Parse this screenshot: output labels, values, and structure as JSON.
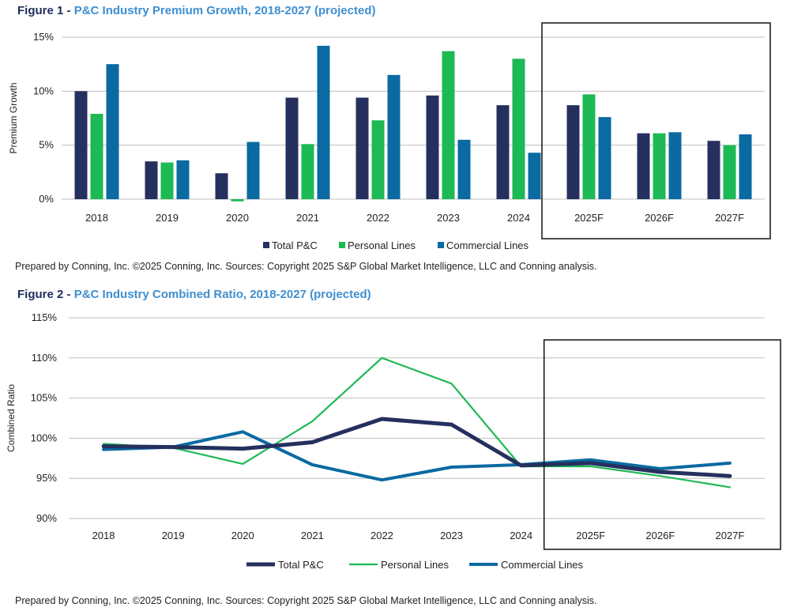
{
  "figures": [
    {
      "label": "Figure 1",
      "separator": " - ",
      "title": "P&C Industry Premium Growth, 2018-2027 (projected)",
      "source": "Prepared by Conning, Inc. ©2025 Conning, Inc. Sources: Copyright 2025 S&P Global Market Intelligence, LLC and Conning analysis."
    },
    {
      "label": "Figure 2",
      "separator": " - ",
      "title": "P&C Industry Combined Ratio, 2018-2027 (projected)",
      "source": "Prepared by Conning, Inc. ©2025 Conning, Inc. Sources: Copyright 2025 S&P Global Market Intelligence, LLC and Conning analysis."
    }
  ],
  "colors": {
    "total": "#25305e",
    "personal": "#1db954",
    "commercial": "#0a6aa1",
    "grid": "#bfbfbf",
    "box": "#111111"
  },
  "chart_data": [
    {
      "type": "bar",
      "title": "P&C Industry Premium Growth, 2018-2027 (projected)",
      "ylabel": "Premium Growth",
      "xlabel": "",
      "categories": [
        "2018",
        "2019",
        "2020",
        "2021",
        "2022",
        "2023",
        "2024",
        "2025F",
        "2026F",
        "2027F"
      ],
      "ylim": [
        0,
        15
      ],
      "yticks": [
        0,
        5,
        10,
        15
      ],
      "ytick_labels": [
        "0%",
        "5%",
        "10%",
        "15%"
      ],
      "grid": true,
      "legend_position": "bottom",
      "projected_box_categories": [
        "2025F",
        "2026F",
        "2027F"
      ],
      "series": [
        {
          "name": "Total P&C",
          "color_key": "total",
          "values": [
            10.0,
            3.5,
            2.4,
            9.4,
            9.4,
            9.6,
            8.7,
            8.7,
            6.1,
            5.4
          ]
        },
        {
          "name": "Personal Lines",
          "color_key": "personal",
          "values": [
            7.9,
            3.4,
            -0.2,
            5.1,
            7.3,
            13.7,
            13.0,
            9.7,
            6.1,
            5.0
          ]
        },
        {
          "name": "Commercial Lines",
          "color_key": "commercial",
          "values": [
            12.5,
            3.6,
            5.3,
            14.2,
            11.5,
            5.5,
            4.3,
            7.6,
            6.2,
            6.0
          ]
        }
      ]
    },
    {
      "type": "line",
      "title": "P&C Industry Combined Ratio, 2018-2027 (projected)",
      "ylabel": "Combined Ratio",
      "xlabel": "",
      "categories": [
        "2018",
        "2019",
        "2020",
        "2021",
        "2022",
        "2023",
        "2024",
        "2025F",
        "2026F",
        "2027F"
      ],
      "ylim": [
        90,
        115
      ],
      "yticks": [
        90,
        95,
        100,
        105,
        110,
        115
      ],
      "ytick_labels": [
        "90%",
        "95%",
        "100%",
        "105%",
        "110%",
        "115%"
      ],
      "grid": true,
      "legend_position": "bottom",
      "projected_box_categories": [
        "2025F",
        "2026F",
        "2027F"
      ],
      "series": [
        {
          "name": "Total P&C",
          "color_key": "total",
          "line_width": "thick",
          "values": [
            99.0,
            98.9,
            98.7,
            99.5,
            102.4,
            101.7,
            96.6,
            96.9,
            95.8,
            95.3
          ]
        },
        {
          "name": "Personal Lines",
          "color_key": "personal",
          "line_width": "thin",
          "values": [
            99.3,
            98.8,
            96.8,
            102.1,
            110.0,
            106.8,
            96.5,
            96.5,
            95.3,
            93.9
          ]
        },
        {
          "name": "Commercial Lines",
          "color_key": "commercial",
          "line_width": "medium",
          "values": [
            98.6,
            98.9,
            100.8,
            96.7,
            94.8,
            96.4,
            96.7,
            97.3,
            96.2,
            96.9
          ]
        }
      ]
    }
  ]
}
